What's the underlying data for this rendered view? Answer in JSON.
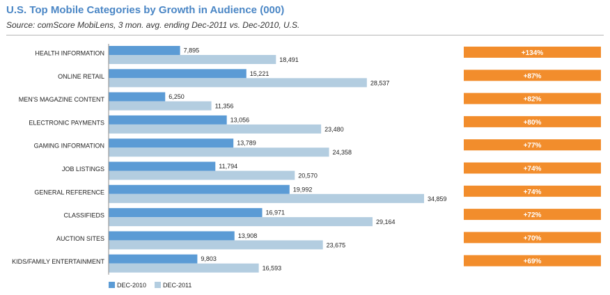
{
  "title": "U.S. Top Mobile Categories by Growth in Audience (000)",
  "subtitle": "Source: comScore MobiLens, 3 mon. avg. ending Dec-2011 vs. Dec-2010, U.S.",
  "colors": {
    "series_2010": "#5b9bd5",
    "series_2011": "#b3cde0",
    "growth_badge": "#f28d2c",
    "title": "#4a86c5"
  },
  "chart_data": {
    "type": "bar",
    "orientation": "horizontal",
    "categories": [
      "HEALTH INFORMATION",
      "ONLINE RETAIL",
      "MEN'S MAGAZINE CONTENT",
      "ELECTRONIC PAYMENTS",
      "GAMING INFORMATION",
      "JOB LISTINGS",
      "GENERAL REFERENCE",
      "CLASSIFIEDS",
      "AUCTION SITES",
      "KIDS/FAMILY ENTERTAINMENT"
    ],
    "series": [
      {
        "name": "DEC-2010",
        "values": [
          7895,
          15221,
          6250,
          13056,
          13789,
          11794,
          19992,
          16971,
          13908,
          9803
        ]
      },
      {
        "name": "DEC-2011",
        "values": [
          18491,
          28537,
          11356,
          23480,
          24358,
          20570,
          34859,
          29164,
          23675,
          16593
        ]
      }
    ],
    "value_labels": [
      [
        "7,895",
        "18,491"
      ],
      [
        "15,221",
        "28,537"
      ],
      [
        "6,250",
        "11,356"
      ],
      [
        "13,056",
        "23,480"
      ],
      [
        "13,789",
        "24,358"
      ],
      [
        "11,794",
        "20,570"
      ],
      [
        "19,992",
        "34,859"
      ],
      [
        "16,971",
        "29,164"
      ],
      [
        "13,908",
        "23,675"
      ],
      [
        "9,803",
        "16,593"
      ]
    ],
    "growth": [
      "+134%",
      "+87%",
      "+82%",
      "+80%",
      "+77%",
      "+74%",
      "+74%",
      "+72%",
      "+70%",
      "+69%"
    ],
    "xlim": [
      0,
      34859
    ],
    "grid": false,
    "legend_position": "bottom-left"
  }
}
